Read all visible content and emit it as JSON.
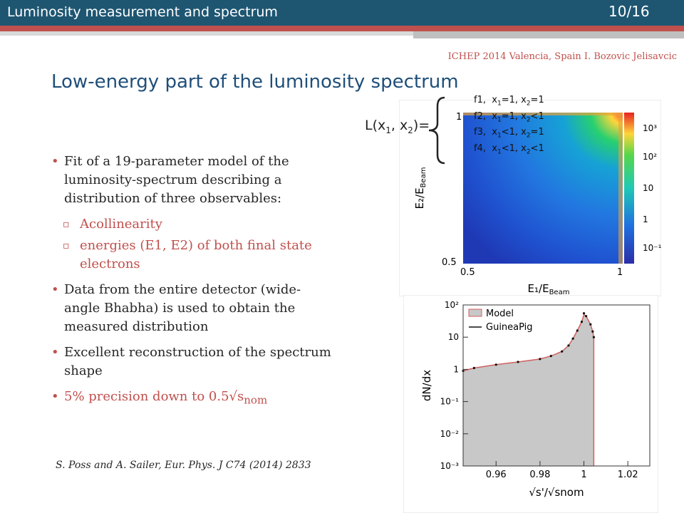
{
  "header": {
    "section_title": "Luminosity measurement and spectrum",
    "slide_number": "10/16",
    "conference": "ICHEP 2014 Valencia, Spain I. Bozovic Jelisavcic"
  },
  "title": "Low-energy part of the luminosity spectrum",
  "bullets": {
    "b1": "Fit of a 19-parameter model of the luminosity-spectrum describing a distribution of three observables:",
    "b1_sub1": "Acollinearity",
    "b1_sub2": "energies (E1, E2) of both final state electrons",
    "b2": "Data from the entire detector (wide-angle Bhabha) is used to obtain the measured distribution",
    "b3": "Excellent reconstruction of the spectrum shape",
    "b4_main": "5% precision down to 0.5√s",
    "b4_sub": "nom"
  },
  "reference": "S. Poss and A. Sailer, Eur. Phys. J C74 (2014) 2833",
  "lumi_formula": {
    "lhs": "L(x",
    "lhs_sub1": "1",
    "mid": ", x",
    "lhs_sub2": "2",
    "rhs": ")=",
    "terms": [
      {
        "f": "f1,",
        "a": "x",
        "as": "1",
        "ar": "=1, x",
        "bs": "2",
        "br": "=1"
      },
      {
        "f": "f2,",
        "a": "x",
        "as": "1",
        "ar": "=1, x",
        "bs": "2",
        "br": "<1"
      },
      {
        "f": "f3,",
        "a": "x",
        "as": "1",
        "ar": "<1, x",
        "bs": "2",
        "br": "=1"
      },
      {
        "f": "f4,",
        "a": "x",
        "as": "1",
        "ar": "<1, x",
        "bs": "2",
        "br": "<1"
      }
    ]
  },
  "chart_data": [
    {
      "type": "heatmap",
      "xlabel": "E1/EBeam",
      "ylabel": "E2/EBeam",
      "xlim": [
        0.5,
        1.0
      ],
      "ylim": [
        0.5,
        1.0
      ],
      "x_ticks": [
        "0.5",
        "1"
      ],
      "y_ticks": [
        "0.5",
        "1"
      ],
      "colorbar_scale": "log",
      "colorbar_ticks": [
        "10^-1",
        "1",
        "10",
        "10^2",
        "10^3"
      ]
    },
    {
      "type": "line",
      "xlabel": "√s'/√snom",
      "ylabel": "dN/dx",
      "xlim": [
        0.945,
        1.03
      ],
      "ylim": [
        0.001,
        100
      ],
      "yscale": "log",
      "x_ticks": [
        "0.96",
        "0.98",
        "1",
        "1.02"
      ],
      "y_ticks": [
        "10^-3",
        "10^-2",
        "10^-1",
        "1",
        "10",
        "10^2"
      ],
      "legend": [
        "Model",
        "GuineaPig"
      ],
      "series": [
        {
          "name": "Model",
          "x": [
            0.945,
            0.95,
            0.96,
            0.97,
            0.98,
            0.985,
            0.99,
            0.993,
            0.995,
            0.997,
            0.999,
            1.0,
            1.001,
            1.003,
            1.004,
            1.0045,
            1.0045
          ],
          "values": [
            0.9,
            1.1,
            1.4,
            1.7,
            2.1,
            2.6,
            3.6,
            5.5,
            9,
            16,
            30,
            50,
            45,
            25,
            15,
            10,
            0.001
          ]
        },
        {
          "name": "GuineaPig",
          "x": [
            0.945,
            0.95,
            0.96,
            0.97,
            0.98,
            0.985,
            0.99,
            0.993,
            0.995,
            0.997,
            0.999,
            1.0,
            1.001,
            1.003,
            1.004,
            1.0045
          ],
          "values": [
            0.9,
            1.1,
            1.4,
            1.7,
            2.1,
            2.6,
            3.6,
            5.5,
            9,
            16,
            30,
            55,
            45,
            25,
            15,
            10
          ]
        }
      ]
    }
  ],
  "colors": {
    "header_bar": "#1e5672",
    "accent_red": "#c0504d",
    "title_blue": "#1f4e79",
    "model_fill": "#c8c8c8",
    "model_line": "#d06060"
  }
}
